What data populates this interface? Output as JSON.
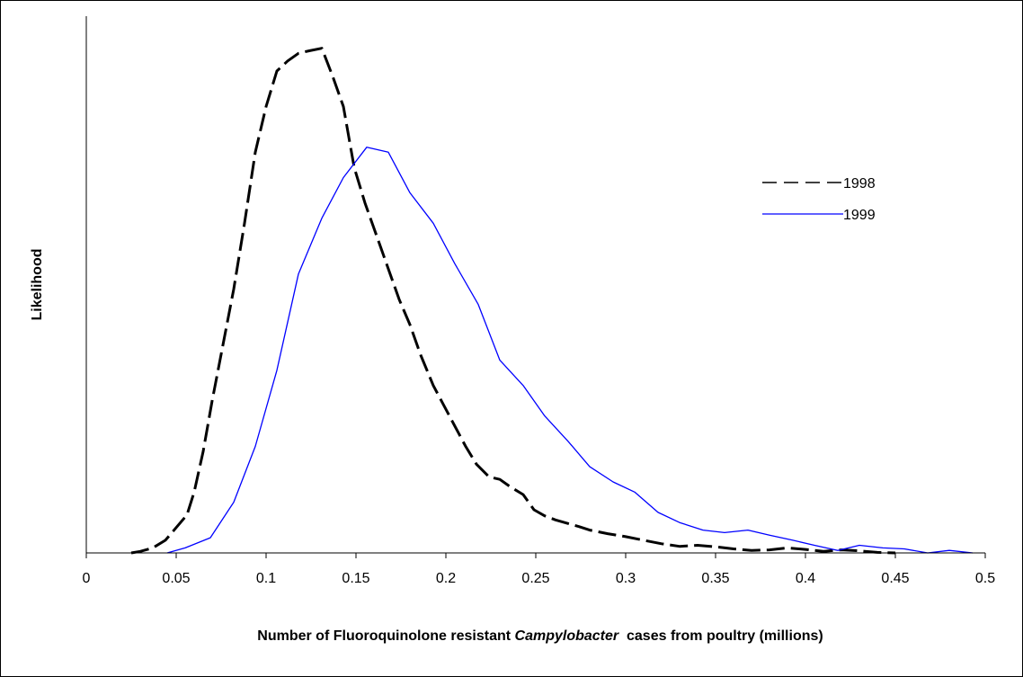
{
  "chart_data": {
    "type": "line",
    "title": "",
    "xlabel_parts": {
      "before": "Number of Fluoroquinolone resistant ",
      "italic": "Campylobacter",
      "after": "  cases from poultry (millions)"
    },
    "ylabel": "Likelihood",
    "xlim": [
      0,
      0.5
    ],
    "ylim": [
      0,
      1
    ],
    "y_tick_labels_shown": false,
    "x_ticks": [
      0,
      0.05,
      0.1,
      0.15,
      0.2,
      0.25,
      0.3,
      0.35,
      0.4,
      0.45,
      0.5
    ],
    "x_tick_labels": [
      "0",
      "0.05",
      "0.1",
      "0.15",
      "0.2",
      "0.25",
      "0.3",
      "0.35",
      "0.4",
      "0.45",
      "0.5"
    ],
    "grid": false,
    "legend_position": "right",
    "series": [
      {
        "name": "1998",
        "style": "dashed",
        "color": "#000000",
        "x": [
          0.025,
          0.03,
          0.037,
          0.044,
          0.05,
          0.056,
          0.06,
          0.065,
          0.07,
          0.076,
          0.082,
          0.088,
          0.094,
          0.1,
          0.106,
          0.112,
          0.118,
          0.124,
          0.131,
          0.137,
          0.143,
          0.149,
          0.155,
          0.162,
          0.168,
          0.174,
          0.18,
          0.186,
          0.193,
          0.199,
          0.205,
          0.211,
          0.217,
          0.224,
          0.23,
          0.236,
          0.243,
          0.249,
          0.255,
          0.261,
          0.268,
          0.274,
          0.28,
          0.29,
          0.3,
          0.31,
          0.32,
          0.33,
          0.34,
          0.35,
          0.36,
          0.37,
          0.38,
          0.39,
          0.4,
          0.41,
          0.42,
          0.43,
          0.44,
          0.45
        ],
        "values": [
          0.0,
          0.003,
          0.01,
          0.025,
          0.05,
          0.075,
          0.12,
          0.2,
          0.3,
          0.41,
          0.52,
          0.65,
          0.79,
          0.88,
          0.95,
          0.97,
          0.985,
          0.99,
          0.995,
          0.94,
          0.88,
          0.76,
          0.69,
          0.62,
          0.56,
          0.5,
          0.45,
          0.39,
          0.33,
          0.29,
          0.25,
          0.21,
          0.175,
          0.15,
          0.145,
          0.13,
          0.115,
          0.085,
          0.073,
          0.065,
          0.058,
          0.052,
          0.045,
          0.038,
          0.032,
          0.025,
          0.018,
          0.013,
          0.015,
          0.012,
          0.008,
          0.005,
          0.006,
          0.01,
          0.007,
          0.003,
          0.006,
          0.004,
          0.001,
          0.0
        ]
      },
      {
        "name": "1999",
        "style": "solid",
        "color": "#0000ff",
        "x": [
          0.045,
          0.055,
          0.069,
          0.082,
          0.094,
          0.106,
          0.118,
          0.131,
          0.143,
          0.156,
          0.168,
          0.18,
          0.193,
          0.205,
          0.218,
          0.23,
          0.243,
          0.255,
          0.268,
          0.28,
          0.293,
          0.305,
          0.318,
          0.33,
          0.343,
          0.355,
          0.368,
          0.38,
          0.393,
          0.405,
          0.418,
          0.43,
          0.443,
          0.455,
          0.468,
          0.48,
          0.493
        ],
        "values": [
          0.0,
          0.01,
          0.03,
          0.1,
          0.21,
          0.36,
          0.55,
          0.66,
          0.74,
          0.8,
          0.79,
          0.71,
          0.65,
          0.57,
          0.49,
          0.38,
          0.33,
          0.27,
          0.22,
          0.17,
          0.14,
          0.12,
          0.08,
          0.06,
          0.045,
          0.04,
          0.045,
          0.035,
          0.025,
          0.015,
          0.005,
          0.015,
          0.01,
          0.008,
          0.0,
          0.005,
          0.0
        ]
      }
    ]
  }
}
